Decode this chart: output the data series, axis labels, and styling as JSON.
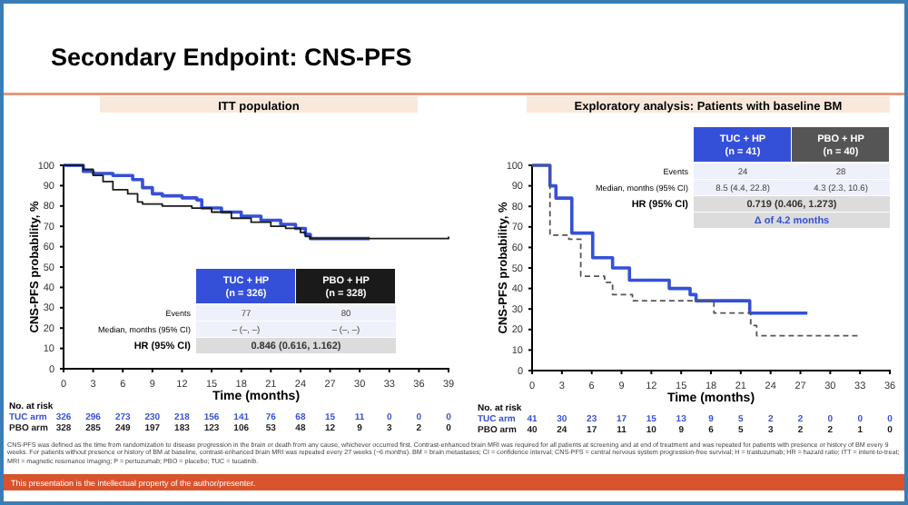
{
  "chart_data": [
    {
      "type": "step",
      "title": "Secondary Endpoint: CNS-PFS",
      "subtitle": "ITT population",
      "xlabel": "Time (months)",
      "ylabel": "CNS-PFS probability, %",
      "xlim": [
        0,
        39
      ],
      "xticks": [
        0,
        3,
        6,
        9,
        12,
        15,
        18,
        21,
        24,
        27,
        30,
        33,
        36,
        39
      ],
      "ylim": [
        0,
        100
      ],
      "yticks": [
        0,
        10,
        20,
        30,
        40,
        50,
        60,
        70,
        80,
        90,
        100
      ],
      "legend": "bottom right",
      "series": [
        {
          "name": "TUC + HP",
          "color": "#3550d8",
          "x": [
            0,
            2,
            3,
            5,
            7,
            8,
            9,
            10,
            12,
            13.5,
            14,
            16,
            18,
            20,
            22,
            23.5,
            24.5,
            25,
            31
          ],
          "values": [
            100,
            97,
            96,
            95,
            93,
            89,
            86,
            85,
            84,
            83,
            79,
            77,
            75,
            73,
            71,
            69,
            66,
            64,
            64
          ]
        },
        {
          "name": "PBO + HP",
          "color": "#1a1a1a",
          "x": [
            0,
            2,
            3,
            4,
            5,
            6.5,
            7.5,
            8,
            10,
            13,
            15,
            17,
            19,
            21,
            22.5,
            24,
            24.5,
            25,
            39
          ],
          "values": [
            100,
            98,
            95,
            92,
            88,
            86,
            82,
            81,
            80,
            79,
            77,
            74,
            72,
            70,
            69,
            67,
            65,
            64,
            65
          ]
        }
      ],
      "annotations": [
        "No. at risk",
        "TUC arm",
        "326 296 273 230 218 156 141 76 68 15 11 0 0 0",
        "PBO arm",
        "328 285 249 197 183 123 106 53 48 12 9 3 2 0",
        "(n = 326)",
        "(n = 328)",
        "Events",
        "77",
        "80",
        "Median, months (95% CI)",
        "– (–, –)",
        "– (–, –)",
        "HR (95% CI)",
        "0.846 (0.616, 1.162)",
        "CNS-PFS was defined as the time from randomization to disease progression in the brain or death from any cause, whichever occurred first. Contrast-enhanced brain MRI was required for all patients at screening and at end of treatment and was repeated for patients with presence or history of BM every 9 weeks. For patients without presence or history of BM at baseline, contrast-enhanced brain MRI was repeated every 27 weeks (~6 months). BM = brain metastases; CI = confidence interval; CNS-PFS = central nervous system progression-free survival; H = trastuzumab; HR = hazard ratio; ITT = intent-to-treat; MRI = magnetic resonance imaging; P = pertuzumab; PBO = placebo; TUC = tucatinib.",
        "This presentation is the intellectual property of the author/presenter."
      ]
    },
    {
      "type": "step",
      "title": "Exploratory analysis: Patients with baseline BM",
      "xlabel": "Time (months)",
      "ylabel": "CNS-PFS probability, %",
      "xlim": [
        0,
        36
      ],
      "xticks": [
        0,
        3,
        6,
        9,
        12,
        15,
        18,
        21,
        24,
        27,
        30,
        33,
        36
      ],
      "ylim": [
        0,
        100
      ],
      "yticks": [
        0,
        10,
        20,
        30,
        40,
        50,
        60,
        70,
        80,
        90,
        100
      ],
      "legend": "top right",
      "series": [
        {
          "name": "TUC + HP",
          "color": "#3550d8",
          "x": [
            0,
            1.8,
            2.4,
            4,
            6.1,
            8.1,
            9.8,
            13.8,
            15.9,
            16.5,
            21.9,
            27.7
          ],
          "values": [
            100,
            90,
            84,
            67,
            55,
            50,
            44,
            40,
            37,
            34,
            28,
            28
          ]
        },
        {
          "name": "PBO + HP",
          "color": "#555555",
          "line_style": "dashed",
          "x": [
            0,
            1.8,
            3.7,
            4.9,
            7.3,
            8.1,
            10.1,
            18.3,
            22,
            22.6,
            33
          ],
          "values": [
            100,
            66,
            64,
            46,
            43,
            37,
            34,
            28,
            22,
            17,
            17
          ]
        }
      ],
      "annotations": [
        "No. at risk",
        "TUC arm",
        "41 30 23 17 15 13 9 5 2 2 0 0 0",
        "PBO arm",
        "40 24 17 11 10 9 6 5 3 2 2 1 0",
        "(n = 41)",
        "(n = 40)",
        "Events",
        "24",
        "28",
        "Median, months (95% CI)",
        "8.5 (4.4, 22.8)",
        "4.3 (2.3, 10.6)",
        "HR (95% CI)",
        "0.719 (0.406, 1.273)",
        "Δ of 4.2 months"
      ]
    }
  ]
}
